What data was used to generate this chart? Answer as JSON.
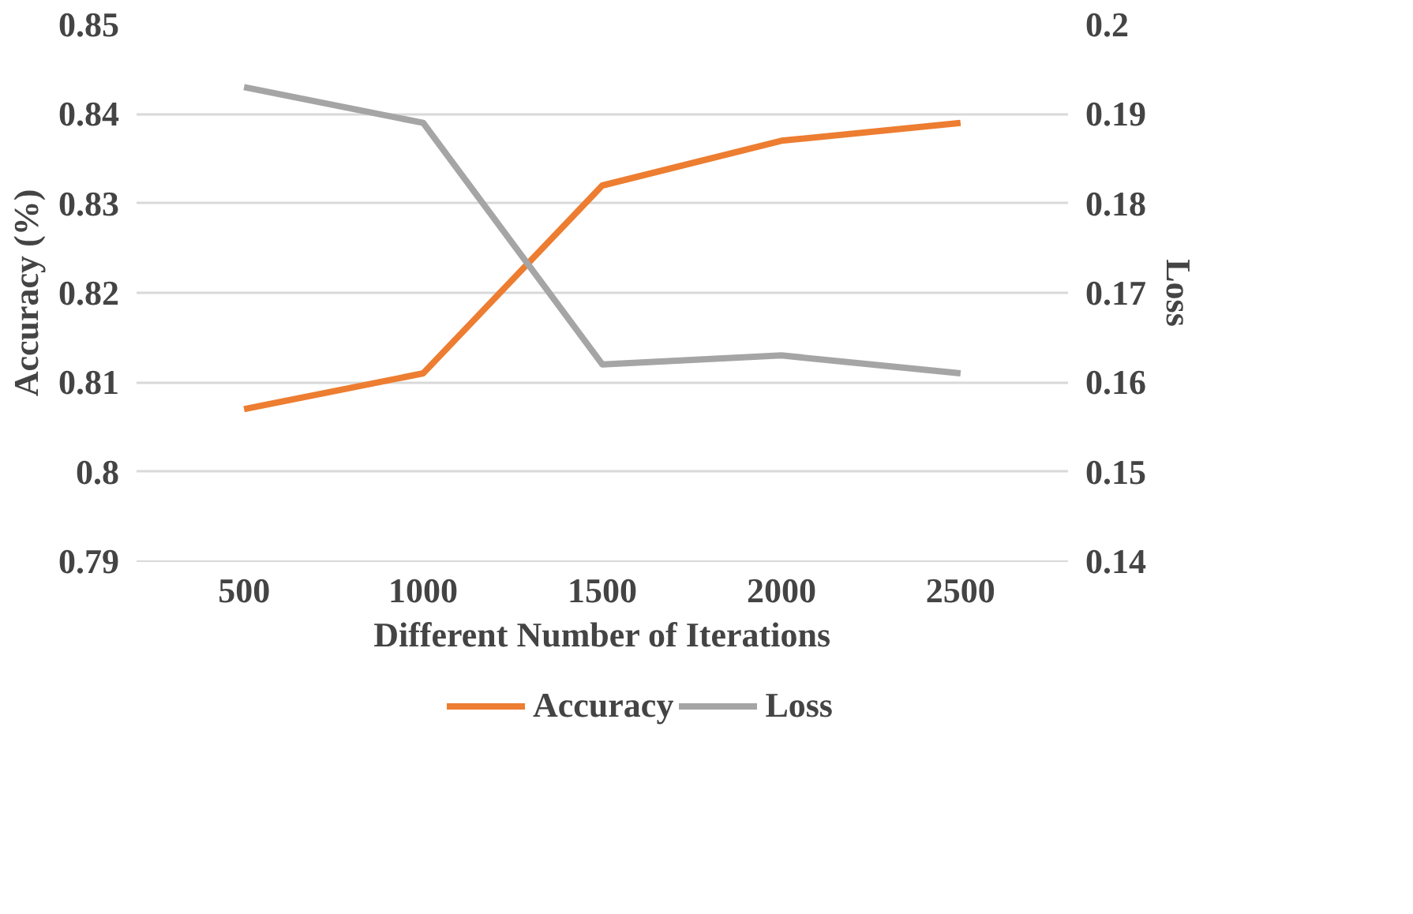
{
  "chart_data": {
    "type": "line",
    "xlabel": "Different Number of Iterations",
    "ylabel": "Accuracy (%)",
    "y2label": "Loss",
    "categories": [
      "500",
      "1000",
      "1500",
      "2000",
      "2500"
    ],
    "series": [
      {
        "name": "Accuracy",
        "color": "#ed7d31",
        "values": [
          0.807,
          0.811,
          0.832,
          0.837,
          0.839
        ]
      },
      {
        "name": "Loss",
        "color": "#a5a5a5",
        "axis": "y2",
        "values": [
          0.193,
          0.189,
          0.162,
          0.163,
          0.161
        ]
      }
    ],
    "ylim": [
      0.79,
      0.85
    ],
    "yticks": [
      0.79,
      0.8,
      0.81,
      0.82,
      0.83,
      0.84,
      0.85
    ],
    "y2lim": [
      0.14,
      0.2
    ],
    "y2ticks": [
      0.14,
      0.15,
      0.16,
      0.17,
      0.18,
      0.19,
      0.2
    ],
    "grid": "y",
    "legend": "bottom",
    "marker": "none",
    "line_style": "solid"
  }
}
